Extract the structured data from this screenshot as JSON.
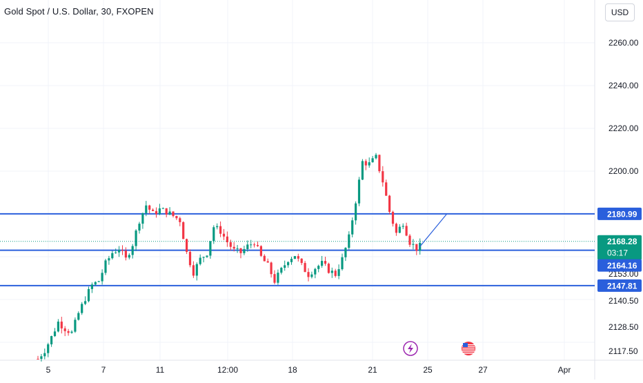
{
  "header": {
    "title": "Gold Spot / U.S. Dollar, 30, FXOPEN",
    "currency_button": "USD"
  },
  "colors": {
    "up": "#089981",
    "down": "#f23645",
    "level_line": "#2a5fdc",
    "current_price_line": "#089981",
    "grid": "#f0f3fa"
  },
  "icons": [
    "lightning-event-icon",
    "us-flag-event-icon"
  ],
  "chart_data": {
    "type": "candlestick",
    "symbol": "Gold Spot / U.S. Dollar",
    "interval": "30",
    "source": "FXOPEN",
    "ylim": [
      2112,
      2276
    ],
    "y_tick_labels": [
      "2260.00",
      "2240.00",
      "2220.00",
      "2200.00",
      "2153.00",
      "2140.50",
      "2128.50",
      "2117.50"
    ],
    "x_tick_labels": [
      "5",
      "7",
      "11",
      "12:00",
      "18",
      "21",
      "25",
      "27",
      "Apr"
    ],
    "horizontal_levels": [
      {
        "label": "2180.99",
        "value": 2180.99
      },
      {
        "label": "2164.16",
        "value": 2164.16
      },
      {
        "label": "2147.81",
        "value": 2147.81
      }
    ],
    "current_price": {
      "label": "2168.28",
      "value": 2168.28,
      "countdown": "03:17"
    },
    "trend_line": {
      "from": 2165.5,
      "to": 2180.99
    },
    "price_path": [
      [
        0,
        2114
      ],
      [
        2,
        2118
      ],
      [
        4,
        2124
      ],
      [
        6,
        2131
      ],
      [
        8,
        2128
      ],
      [
        10,
        2126
      ],
      [
        12,
        2135
      ],
      [
        14,
        2142
      ],
      [
        16,
        2148
      ],
      [
        18,
        2150
      ],
      [
        20,
        2158
      ],
      [
        22,
        2163
      ],
      [
        24,
        2165
      ],
      [
        26,
        2160
      ],
      [
        28,
        2167
      ],
      [
        30,
        2178
      ],
      [
        32,
        2185
      ],
      [
        34,
        2181
      ],
      [
        36,
        2183
      ],
      [
        38,
        2182
      ],
      [
        40,
        2180
      ],
      [
        42,
        2178
      ],
      [
        44,
        2163
      ],
      [
        46,
        2154
      ],
      [
        48,
        2160
      ],
      [
        50,
        2163
      ],
      [
        52,
        2175
      ],
      [
        54,
        2173
      ],
      [
        56,
        2168
      ],
      [
        58,
        2164
      ],
      [
        60,
        2163
      ],
      [
        62,
        2166
      ],
      [
        64,
        2168
      ],
      [
        66,
        2161
      ],
      [
        68,
        2157
      ],
      [
        70,
        2150
      ],
      [
        72,
        2155
      ],
      [
        74,
        2160
      ],
      [
        76,
        2162
      ],
      [
        78,
        2157
      ],
      [
        80,
        2153
      ],
      [
        82,
        2156
      ],
      [
        84,
        2158
      ],
      [
        86,
        2155
      ],
      [
        88,
        2153
      ],
      [
        90,
        2160
      ],
      [
        92,
        2170
      ],
      [
        94,
        2187
      ],
      [
        96,
        2205
      ],
      [
        98,
        2204
      ],
      [
        100,
        2207
      ],
      [
        102,
        2196
      ],
      [
        104,
        2182
      ],
      [
        106,
        2172
      ],
      [
        108,
        2177
      ],
      [
        110,
        2168
      ],
      [
        112,
        2165
      ],
      [
        113,
        2166
      ]
    ],
    "grid": true
  }
}
